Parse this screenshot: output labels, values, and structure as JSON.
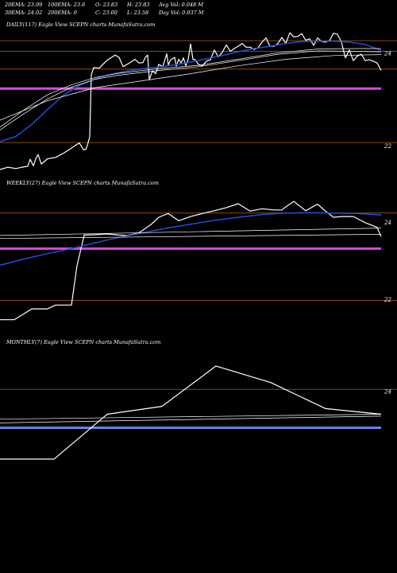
{
  "header": {
    "row1": [
      "20EMA: 23.99",
      "100EMA: 23.6",
      "O: 23.83",
      "H: 23.83",
      "Avg Vol: 0.048 M"
    ],
    "row2": [
      "30EMA: 24.02",
      "200EMA: 0",
      "C: 23.60",
      "L: 23.58",
      "Day Vol: 0.037 M"
    ]
  },
  "colors": {
    "background": "#000000",
    "price": "#ffffff",
    "ema_fast": "#1f4fd6",
    "ema_other": "#ffffff",
    "level_line": "#8a4a12",
    "support_daily_weekly": "#d84ad8",
    "support_monthly": "#5b8ae6"
  },
  "chart_data": [
    {
      "type": "line",
      "title": "DAILY(117) Eagle  View  SCEPN  charts MunafaSutra.com",
      "y_ticks": [
        "24",
        "22"
      ],
      "ylim": [
        21.37,
        24.45
      ],
      "level_lines": [
        24.26,
        24.03,
        23.65,
        22.07
      ],
      "support_line": 23.23,
      "series": [
        {
          "role": "price",
          "x": [
            0,
            10,
            20,
            28,
            35,
            38,
            42,
            45,
            48,
            52,
            60,
            70,
            80,
            90,
            95,
            100,
            105,
            108,
            110,
            113,
            115,
            118,
            125,
            135,
            145,
            150,
            155,
            160,
            165,
            170,
            175,
            180,
            183,
            186,
            188,
            192,
            196,
            200,
            205,
            210,
            212,
            215,
            220,
            222,
            225,
            228,
            231,
            234,
            237,
            240,
            243,
            246,
            250,
            255,
            260,
            265,
            270,
            275,
            280,
            285,
            290,
            295,
            300,
            305,
            310,
            315,
            320,
            325,
            330,
            335,
            340,
            345,
            350,
            355,
            360,
            365,
            370,
            375,
            380,
            385,
            390,
            395,
            400,
            405,
            410,
            415,
            420,
            425,
            430,
            435,
            440,
            445,
            450,
            455,
            460,
            465,
            470,
            475,
            480
          ],
          "y": [
            21.49,
            21.54,
            21.51,
            21.54,
            21.56,
            21.71,
            21.57,
            21.72,
            21.81,
            21.61,
            21.72,
            21.75,
            21.84,
            21.95,
            22.01,
            22.06,
            21.92,
            21.92,
            22.01,
            22.19,
            23.53,
            23.68,
            23.67,
            23.84,
            23.95,
            23.9,
            23.7,
            23.75,
            23.8,
            23.86,
            23.78,
            23.79,
            23.9,
            23.95,
            23.42,
            23.61,
            23.55,
            23.75,
            23.7,
            23.98,
            23.74,
            23.85,
            23.9,
            23.71,
            23.86,
            23.78,
            23.89,
            23.72,
            23.86,
            24.19,
            23.86,
            23.85,
            23.75,
            23.72,
            23.82,
            23.85,
            24.06,
            23.91,
            24.01,
            24.17,
            24.03,
            24.09,
            24.14,
            24.2,
            24.12,
            24.12,
            24.07,
            24.11,
            24.23,
            24.32,
            24.14,
            24.14,
            24.2,
            24.33,
            24.2,
            24.43,
            24.34,
            24.35,
            24.41,
            24.27,
            24.3,
            24.16,
            24.32,
            24.24,
            24.23,
            24.26,
            24.42,
            24.4,
            24.23,
            23.89,
            24.06,
            23.83,
            23.93,
            23.97,
            23.83,
            23.85,
            23.82,
            23.78,
            23.62
          ]
        },
        {
          "role": "ema_fast",
          "x": [
            0,
            20,
            40,
            60,
            80,
            100,
            120,
            140,
            160,
            180,
            200,
            220,
            240,
            260,
            280,
            300,
            320,
            340,
            360,
            380,
            400,
            420,
            440,
            460,
            480
          ],
          "y": [
            22.09,
            22.2,
            22.46,
            22.78,
            23.09,
            23.3,
            23.44,
            23.54,
            23.61,
            23.66,
            23.69,
            23.74,
            23.8,
            23.87,
            23.94,
            24.02,
            24.09,
            24.14,
            24.2,
            24.24,
            24.25,
            24.25,
            24.23,
            24.18,
            24.05
          ]
        },
        {
          "role": "ema_other",
          "x": [
            0,
            30,
            60,
            90,
            120,
            150,
            200,
            250,
            300,
            350,
            400,
            450,
            480
          ],
          "y": [
            22.4,
            22.77,
            23.1,
            23.31,
            23.47,
            23.56,
            23.66,
            23.73,
            23.86,
            24.0,
            24.08,
            24.09,
            24.09
          ]
        },
        {
          "role": "ema_other",
          "x": [
            0,
            30,
            60,
            90,
            120,
            150,
            200,
            250,
            300,
            350,
            400,
            450,
            480
          ],
          "y": [
            22.34,
            22.69,
            23.01,
            23.26,
            23.43,
            23.52,
            23.62,
            23.7,
            23.83,
            23.97,
            24.04,
            24.03,
            24.02
          ]
        },
        {
          "role": "ema_other",
          "x": [
            0,
            60,
            120,
            180,
            240,
            300,
            360,
            420,
            480
          ],
          "y": [
            22.55,
            22.97,
            23.25,
            23.4,
            23.55,
            23.72,
            23.86,
            23.94,
            23.96
          ]
        }
      ]
    },
    {
      "type": "line",
      "title": "WEEKLY(27) Eagle  View  SCEPN  charts MunafaSutra.com",
      "y_ticks": [
        "24",
        "22"
      ],
      "ylim": [
        21.3,
        24.8
      ],
      "level_lines": [
        24.23,
        21.97
      ],
      "support_line": 23.31,
      "series": [
        {
          "role": "price",
          "x": [
            0,
            18,
            40,
            60,
            70,
            90,
            97,
            106,
            120,
            135,
            150,
            160,
            175,
            190,
            200,
            212,
            225,
            240,
            255,
            270,
            285,
            300,
            315,
            330,
            345,
            355,
            360,
            370,
            385,
            400,
            410,
            420,
            430,
            445,
            460,
            475,
            480
          ],
          "y": [
            21.47,
            21.47,
            21.75,
            21.75,
            21.85,
            21.85,
            22.87,
            23.66,
            23.67,
            23.69,
            23.66,
            23.65,
            23.72,
            23.93,
            24.12,
            24.22,
            24.03,
            24.14,
            24.22,
            24.29,
            24.37,
            24.47,
            24.28,
            24.34,
            24.31,
            24.31,
            24.39,
            24.53,
            24.29,
            24.46,
            24.28,
            24.12,
            24.14,
            24.14,
            23.98,
            23.86,
            23.62
          ]
        },
        {
          "role": "ema_fast",
          "x": [
            0,
            30,
            60,
            90,
            120,
            150,
            180,
            210,
            240,
            270,
            300,
            330,
            360,
            390,
            420,
            450,
            480
          ],
          "y": [
            22.88,
            23.04,
            23.18,
            23.31,
            23.46,
            23.6,
            23.72,
            23.84,
            23.94,
            24.04,
            24.12,
            24.19,
            24.23,
            24.24,
            24.23,
            24.22,
            24.18
          ]
        },
        {
          "role": "ema_other",
          "x": [
            0,
            480
          ],
          "y": [
            23.65,
            23.84
          ]
        },
        {
          "role": "ema_other",
          "x": [
            0,
            480
          ],
          "y": [
            23.57,
            23.68
          ]
        }
      ]
    },
    {
      "type": "line",
      "title": "MONTHLY(7) Eagle  View  SCEPN  charts MunafaSutra.com",
      "y_ticks": [
        "24"
      ],
      "ylim": [
        21.5,
        25.09
      ],
      "level_lines": [
        24.05
      ],
      "support_line": 23.03,
      "series": [
        {
          "role": "price",
          "x": [
            0,
            68,
            135,
            204,
            272,
            341,
            410,
            480
          ],
          "y": [
            22.2,
            22.2,
            23.39,
            23.6,
            24.67,
            24.23,
            23.54,
            23.39
          ]
        },
        {
          "role": "ema_other",
          "x": [
            0,
            480
          ],
          "y": [
            23.26,
            23.39
          ]
        },
        {
          "role": "ema_other",
          "x": [
            0,
            480
          ],
          "y": [
            23.16,
            23.34
          ]
        }
      ]
    }
  ]
}
